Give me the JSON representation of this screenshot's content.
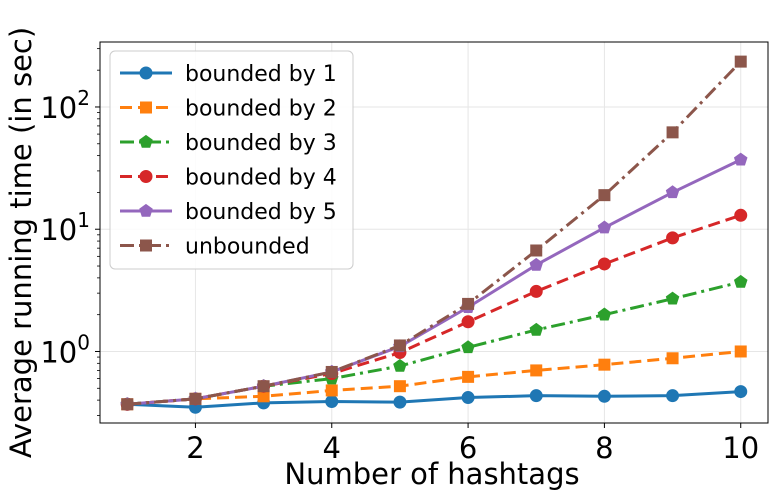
{
  "chart_data": {
    "type": "line",
    "xlabel": "Number of hashtags",
    "ylabel": "Average running time (in sec)",
    "yscale": "log",
    "xlim": [
      0.6,
      10.4
    ],
    "ylim": [
      0.26,
      340
    ],
    "x_ticks": [
      2,
      4,
      6,
      8,
      10
    ],
    "x_tick_labels": [
      "2",
      "4",
      "6",
      "8",
      "10"
    ],
    "y_ticks": [
      1,
      10,
      100
    ],
    "y_tick_labels": [
      {
        "base": "10",
        "exp": "0"
      },
      {
        "base": "10",
        "exp": "1"
      },
      {
        "base": "10",
        "exp": "2"
      }
    ],
    "grid": true,
    "legend_position": "upper-left",
    "x": [
      1,
      2,
      3,
      4,
      5,
      6,
      7,
      8,
      9,
      10
    ],
    "series": [
      {
        "name": "bounded by 1",
        "color": "#1f77b4",
        "dash": "solid",
        "marker": "circle",
        "values": [
          0.37,
          0.35,
          0.38,
          0.39,
          0.385,
          0.42,
          0.435,
          0.43,
          0.435,
          0.47
        ]
      },
      {
        "name": "bounded by 2",
        "color": "#ff7f0e",
        "dash": "dashed",
        "marker": "square",
        "values": [
          0.37,
          0.41,
          0.43,
          0.48,
          0.52,
          0.62,
          0.7,
          0.78,
          0.88,
          1.0
        ]
      },
      {
        "name": "bounded by 3",
        "color": "#2ca02c",
        "dash": "dashdot",
        "marker": "pentagon",
        "values": [
          0.37,
          0.41,
          0.52,
          0.6,
          0.76,
          1.08,
          1.5,
          2.0,
          2.7,
          3.7
        ]
      },
      {
        "name": "bounded by 4",
        "color": "#d62728",
        "dash": "dashed",
        "marker": "circle",
        "values": [
          0.37,
          0.41,
          0.52,
          0.66,
          0.98,
          1.75,
          3.1,
          5.2,
          8.5,
          13.0
        ]
      },
      {
        "name": "bounded by 5",
        "color": "#9467bd",
        "dash": "solid",
        "marker": "pentagon",
        "values": [
          0.37,
          0.41,
          0.52,
          0.68,
          1.1,
          2.3,
          5.1,
          10.3,
          20.0,
          37.0
        ]
      },
      {
        "name": "unbounded",
        "color": "#8c564b",
        "dash": "dashdot",
        "marker": "square",
        "values": [
          0.37,
          0.41,
          0.52,
          0.68,
          1.12,
          2.45,
          6.7,
          19.0,
          62.0,
          235.0
        ]
      }
    ]
  }
}
